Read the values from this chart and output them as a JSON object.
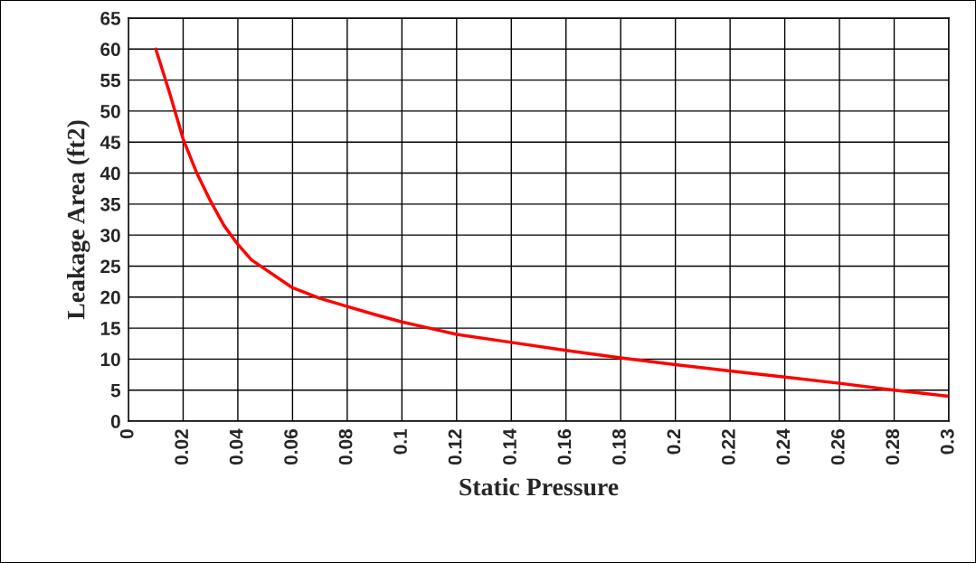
{
  "chart_data": {
    "type": "line",
    "xlabel": "Static Pressure",
    "ylabel": "Leakage Area (ft2)",
    "x": [
      0.01,
      0.015,
      0.02,
      0.025,
      0.03,
      0.035,
      0.04,
      0.045,
      0.05,
      0.06,
      0.07,
      0.08,
      0.09,
      0.1,
      0.11,
      0.12,
      0.14,
      0.16,
      0.18,
      0.2,
      0.22,
      0.24,
      0.26,
      0.28,
      0.3
    ],
    "series": [
      {
        "color": "#ff0000",
        "values": [
          60,
          53,
          45.5,
          40,
          35.5,
          31.5,
          28.5,
          26,
          24.5,
          21.5,
          19.8,
          18.5,
          17.2,
          16,
          15,
          14,
          12.7,
          11.4,
          10.2,
          9.1,
          8.1,
          7.1,
          6.1,
          5,
          4
        ]
      }
    ],
    "xlim": [
      0,
      0.3
    ],
    "xticks": [
      0,
      0.02,
      0.04,
      0.06,
      0.08,
      0.1,
      0.12,
      0.14,
      0.16,
      0.18,
      0.2,
      0.22,
      0.24,
      0.26,
      0.28,
      0.3
    ],
    "ylim": [
      0,
      65
    ],
    "yticks": [
      0,
      5,
      10,
      15,
      20,
      25,
      30,
      35,
      40,
      45,
      50,
      55,
      60,
      65
    ],
    "grid": true,
    "marker": "none",
    "line_style": "solid"
  }
}
